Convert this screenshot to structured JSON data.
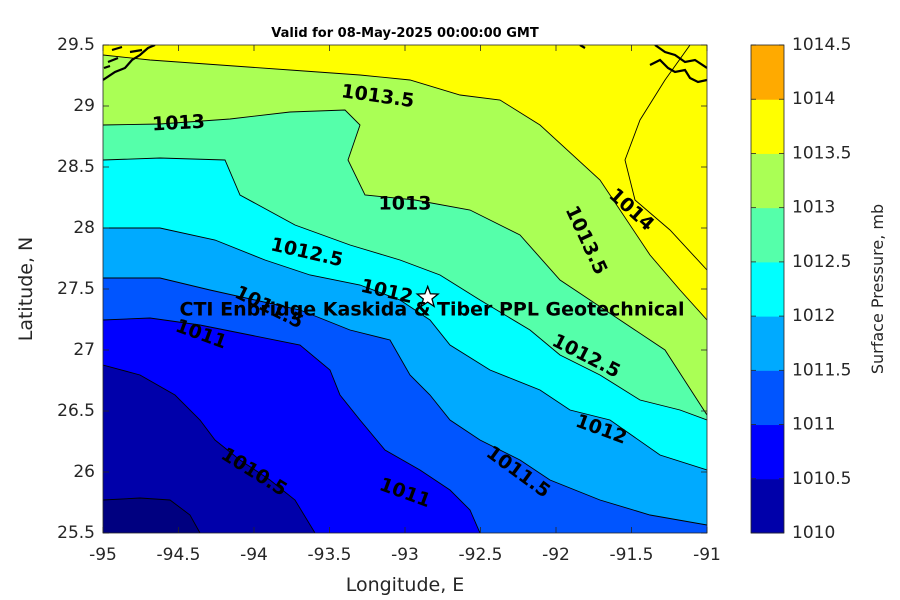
{
  "chart_data": {
    "type": "contour",
    "title": "Valid for 08-May-2025 00:00:00 GMT",
    "xlabel": "Longitude, E",
    "ylabel": "Latitude, N",
    "xlim": [
      -95,
      -91
    ],
    "ylim": [
      25.5,
      29.5
    ],
    "xticks": [
      "-95",
      "-94.5",
      "-94",
      "-93.5",
      "-93",
      "-92.5",
      "-92",
      "-91.5",
      "-91"
    ],
    "yticks": [
      "25.5",
      "26",
      "26.5",
      "27",
      "27.5",
      "28",
      "28.5",
      "29",
      "29.5"
    ],
    "colorbar": {
      "label": "Surface Pressure, mb",
      "levels": [
        1010,
        1010.5,
        1011,
        1011.5,
        1012,
        1012.5,
        1013,
        1013.5,
        1014,
        1014.5
      ],
      "tick_labels": [
        "1010",
        "1010.5",
        "1011",
        "1011.5",
        "1012",
        "1012.5",
        "1013",
        "1013.5",
        "1014",
        "1014.5"
      ],
      "colors": [
        "#0000aa",
        "#0000ff",
        "#0055ff",
        "#00aaff",
        "#00ffff",
        "#55ffaa",
        "#aaff55",
        "#ffff00",
        "#ffaa00",
        "#ff5500"
      ]
    },
    "contour_labels": [
      {
        "text": "1013.5",
        "lon": -93.18,
        "lat": 29.08,
        "angle": 8
      },
      {
        "text": "1013",
        "lon": -94.5,
        "lat": 28.86,
        "angle": -3
      },
      {
        "text": "1013",
        "lon": -93.0,
        "lat": 28.2,
        "angle": 0
      },
      {
        "text": "1014",
        "lon": -91.5,
        "lat": 28.15,
        "angle": 42
      },
      {
        "text": "1013.5",
        "lon": -91.8,
        "lat": 27.9,
        "angle": 65
      },
      {
        "text": "1012.5",
        "lon": -93.65,
        "lat": 27.8,
        "angle": 13
      },
      {
        "text": "1012",
        "lon": -93.12,
        "lat": 27.48,
        "angle": 13
      },
      {
        "text": "1011.5",
        "lon": -93.9,
        "lat": 27.35,
        "angle": 26
      },
      {
        "text": "1011",
        "lon": -94.35,
        "lat": 27.13,
        "angle": 20
      },
      {
        "text": "1012.5",
        "lon": -91.8,
        "lat": 26.95,
        "angle": 27
      },
      {
        "text": "1012",
        "lon": -91.7,
        "lat": 26.35,
        "angle": 20
      },
      {
        "text": "1011.5",
        "lon": -92.25,
        "lat": 26.0,
        "angle": 36
      },
      {
        "text": "1010.5",
        "lon": -94.0,
        "lat": 26.0,
        "angle": 32
      },
      {
        "text": "1011",
        "lon": -93.0,
        "lat": 25.83,
        "angle": 20
      }
    ],
    "site": {
      "name": "CTI Enbridge Kaskida & Tiber PPL Geotechnical",
      "lon": -92.85,
      "lat": 27.43
    }
  }
}
